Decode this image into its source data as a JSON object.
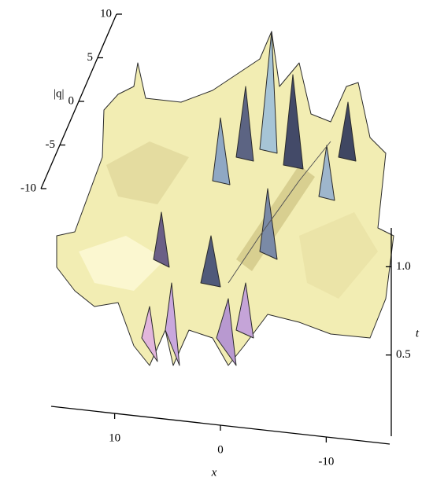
{
  "chart_data": {
    "type": "surface3d",
    "z_label": "|q|",
    "x_label": "x",
    "t_label": "t",
    "zlim": [
      -10,
      10
    ],
    "zticks": [
      10,
      5,
      0,
      -5,
      -10
    ],
    "xlim": [
      16,
      -16
    ],
    "xticks": [
      10,
      0,
      -10
    ],
    "tlim": [
      0.04,
      1.22
    ],
    "tticks": [
      0.5,
      {
        "value": 1,
        "label": "1.0"
      }
    ]
  }
}
